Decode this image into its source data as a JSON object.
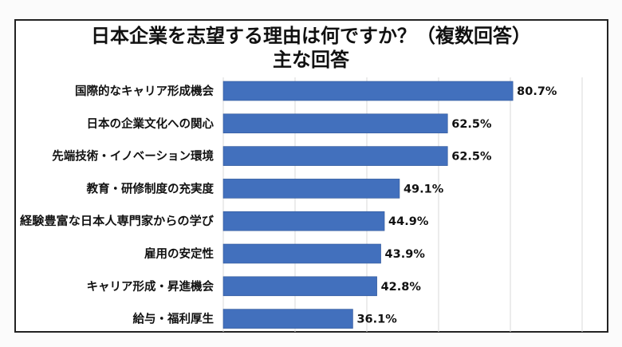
{
  "chart_data": {
    "type": "bar",
    "orientation": "horizontal",
    "title": "日本企業を志望する理由は何ですか？（複数回答）",
    "subtitle": "主な回答",
    "categories": [
      "国際的なキャリア形成機会",
      "日本の企業文化への関心",
      "先端技術・イノベーション環境",
      "教育・研修制度の充実度",
      "経験豊富な日本人専門家からの学び",
      "雇用の安定性",
      "キャリア形成・昇進機会",
      "給与・福利厚生"
    ],
    "values": [
      80.7,
      62.5,
      62.5,
      49.1,
      44.9,
      43.9,
      42.8,
      36.1
    ],
    "value_labels": [
      "80.7%",
      "62.5%",
      "62.5%",
      "49.1%",
      "44.9%",
      "43.9%",
      "42.8%",
      "36.1%"
    ],
    "xlim": [
      0,
      100
    ],
    "grid": true,
    "xlabel": "",
    "ylabel": "",
    "colors": {
      "bar": "#4270BD",
      "grid": "#d9d9d9"
    }
  }
}
